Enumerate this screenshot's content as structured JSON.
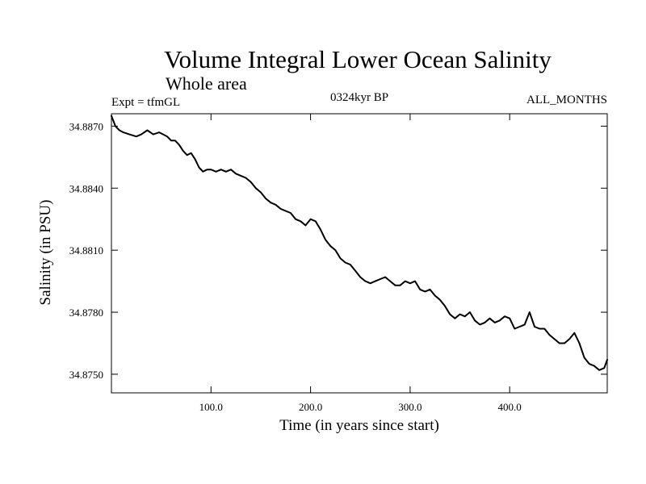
{
  "chart_data": {
    "type": "line",
    "title": "Volume Integral Lower Ocean Salinity",
    "subtitle": "Whole area",
    "left_label": "Expt = tfmGL",
    "center_label": "0324kyr BP",
    "right_label": "ALL_MONTHS",
    "xlabel": "Time (in years since start)",
    "ylabel": "Salinity (in PSU)",
    "xlim": [
      0,
      498
    ],
    "ylim": [
      34.8741,
      34.8876
    ],
    "xticks": [
      100,
      200,
      300,
      400
    ],
    "xtick_labels": [
      "100.0",
      "200.0",
      "300.0",
      "400.0"
    ],
    "yticks": [
      34.875,
      34.878,
      34.881,
      34.884,
      34.887
    ],
    "ytick_labels": [
      "34.8750",
      "34.8780",
      "34.8810",
      "34.8840",
      "34.8870"
    ],
    "grid": false,
    "series": [
      {
        "color": "#000000",
        "x": [
          0,
          4,
          8,
          12,
          18,
          25,
          30,
          36,
          42,
          48,
          52,
          56,
          60,
          64,
          68,
          72,
          76,
          80,
          84,
          88,
          92,
          96,
          100,
          105,
          110,
          115,
          120,
          125,
          130,
          135,
          140,
          145,
          150,
          155,
          160,
          165,
          170,
          175,
          180,
          185,
          190,
          195,
          200,
          205,
          210,
          215,
          220,
          225,
          230,
          235,
          240,
          245,
          250,
          255,
          260,
          265,
          270,
          275,
          280,
          285,
          290,
          295,
          300,
          305,
          310,
          315,
          320,
          325,
          330,
          335,
          340,
          345,
          350,
          355,
          360,
          365,
          370,
          375,
          380,
          385,
          390,
          395,
          400,
          405,
          410,
          415,
          420,
          425,
          430,
          435,
          440,
          445,
          450,
          455,
          460,
          465,
          470,
          475,
          480,
          485,
          490,
          495,
          498
        ],
        "y": [
          34.8875,
          34.887,
          34.8868,
          34.8867,
          34.8866,
          34.8865,
          34.8866,
          34.8868,
          34.8866,
          34.8867,
          34.8866,
          34.8865,
          34.8863,
          34.8863,
          34.8861,
          34.8858,
          34.8856,
          34.8857,
          34.8854,
          34.885,
          34.8848,
          34.8849,
          34.8849,
          34.8848,
          34.8849,
          34.8848,
          34.8849,
          34.8847,
          34.8846,
          34.8845,
          34.8843,
          34.884,
          34.8838,
          34.8835,
          34.8833,
          34.8832,
          34.883,
          34.8829,
          34.8828,
          34.8825,
          34.8824,
          34.8822,
          34.8825,
          34.8824,
          34.882,
          34.8815,
          34.8812,
          34.881,
          34.8806,
          34.8804,
          34.8803,
          34.88,
          34.8797,
          34.8795,
          34.8794,
          34.8795,
          34.8796,
          34.8797,
          34.8795,
          34.8793,
          34.8793,
          34.8795,
          34.8794,
          34.8795,
          34.8791,
          34.879,
          34.8791,
          34.8788,
          34.8786,
          34.8783,
          34.8779,
          34.8777,
          34.8779,
          34.8778,
          34.878,
          34.8776,
          34.8774,
          34.8775,
          34.8777,
          34.8775,
          34.8776,
          34.8778,
          34.8777,
          34.8772,
          34.8773,
          34.8774,
          34.878,
          34.8773,
          34.8772,
          34.8772,
          34.8769,
          34.8767,
          34.8765,
          34.8765,
          34.8767,
          34.877,
          34.8765,
          34.8758,
          34.8755,
          34.8754,
          34.8752,
          34.8753,
          34.8757
        ]
      }
    ]
  }
}
